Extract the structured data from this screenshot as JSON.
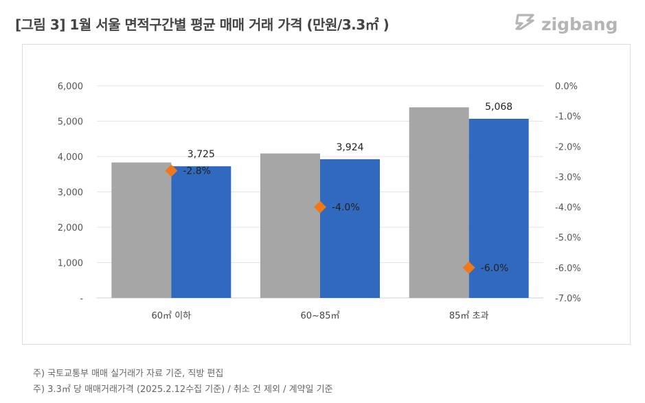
{
  "title": "[그림 3] 1월 서울 면적구간별 평균 매매 거래 가격 (만원/3.3㎡ )",
  "logo": {
    "text": "zigbang",
    "icon": "zigbang-logo-icon"
  },
  "notes": [
    "주) 국토교통부 매매 실거래가 자료 기준, 직방 편집",
    "주) 3.3㎡ 당 매매거래가격 (2025.2.12수집 기준) / 취소 건 제외 / 계약일 기준"
  ],
  "chart_data": {
    "type": "bar",
    "categories": [
      "60㎡ 이하",
      "60~85㎡",
      "85㎡ 초과"
    ],
    "series": [
      {
        "values": [
          3832,
          4087,
          5392
        ],
        "color": "#a6a6a6",
        "axis": "left",
        "kind": "bar"
      },
      {
        "values": [
          3725,
          3924,
          5068
        ],
        "color": "#3069be",
        "axis": "left",
        "kind": "bar",
        "data_labels": [
          "3,725",
          "3,924",
          "5,068"
        ]
      },
      {
        "values": [
          -2.8,
          -4.0,
          -6.0
        ],
        "color": "#f07818",
        "axis": "right",
        "kind": "marker-diamond",
        "data_labels": [
          "-2.8%",
          "-4.0%",
          "-6.0%"
        ]
      }
    ],
    "y_left": {
      "ylim": [
        0,
        6000
      ],
      "ticks": [
        0,
        1000,
        2000,
        3000,
        4000,
        5000,
        6000
      ],
      "tick_labels": [
        "-",
        "1,000",
        "2,000",
        "3,000",
        "4,000",
        "5,000",
        "6,000"
      ]
    },
    "y_right": {
      "ylim": [
        -7.0,
        0.0
      ],
      "ticks": [
        0,
        -1,
        -2,
        -3,
        -4,
        -5,
        -6,
        -7
      ],
      "tick_labels": [
        "0.0%",
        "-1.0%",
        "-2.0%",
        "-3.0%",
        "-4.0%",
        "-5.0%",
        "-6.0%",
        "-7.0%"
      ]
    },
    "grid": true,
    "legend": "none",
    "xlabel": "",
    "ylabel": ""
  }
}
